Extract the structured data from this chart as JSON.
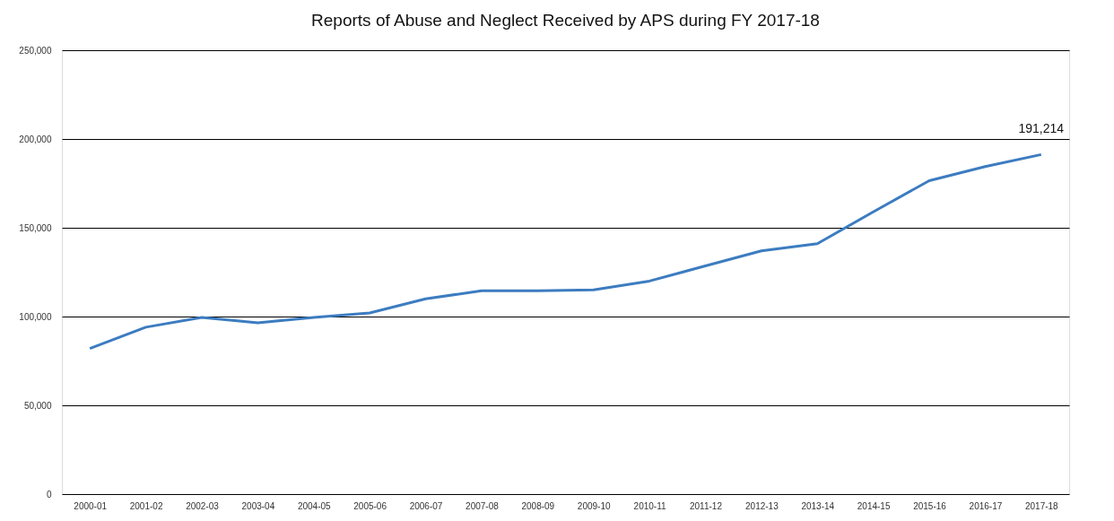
{
  "chart_data": {
    "type": "line",
    "title": "Reports of Abuse and Neglect Received by APS during FY 2017-18",
    "categories": [
      "2000-01",
      "2001-02",
      "2002-03",
      "2003-04",
      "2004-05",
      "2005-06",
      "2006-07",
      "2007-08",
      "2008-09",
      "2009-10",
      "2010-11",
      "2011-12",
      "2012-13",
      "2013-14",
      "2014-15",
      "2015-16",
      "2016-17",
      "2017-18"
    ],
    "series": [
      {
        "color": "#3c7cc0",
        "values": [
          82000,
          94000,
          99500,
          96500,
          99500,
          102000,
          110000,
          114500,
          114500,
          115000,
          120000,
          128500,
          137000,
          141000,
          159000,
          176500,
          184500,
          191214
        ],
        "value_labels": [
          null,
          null,
          null,
          null,
          null,
          null,
          null,
          null,
          null,
          null,
          null,
          null,
          null,
          null,
          null,
          null,
          null,
          "191,214"
        ]
      }
    ],
    "ylim": [
      0,
      250000
    ],
    "yticks": [
      {
        "value": 0,
        "label": "0"
      },
      {
        "value": 50000,
        "label": "50,000"
      },
      {
        "value": 100000,
        "label": "100,000"
      },
      {
        "value": 150000,
        "label": "150,000"
      },
      {
        "value": 200000,
        "label": "200,000"
      },
      {
        "value": 250000,
        "label": "250,000"
      }
    ],
    "grid": "y",
    "legend": false,
    "marker": "none",
    "line_style": "solid"
  }
}
